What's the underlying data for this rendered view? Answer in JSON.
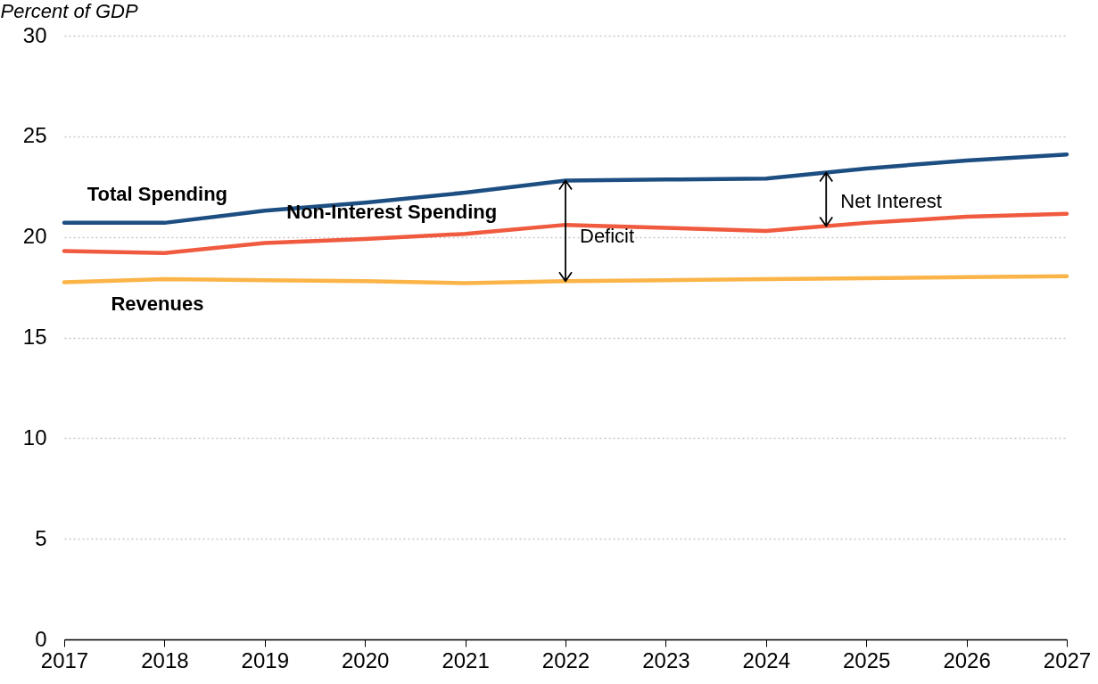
{
  "chart_data": {
    "type": "line",
    "ylabel": "Percent of GDP",
    "x": [
      2017,
      2018,
      2019,
      2020,
      2021,
      2022,
      2023,
      2024,
      2025,
      2026,
      2027
    ],
    "series": [
      {
        "name": "Total Spending",
        "color": "#1d4e82",
        "values": [
          20.7,
          20.7,
          21.3,
          21.7,
          22.2,
          22.8,
          22.85,
          22.9,
          23.4,
          23.8,
          24.1
        ]
      },
      {
        "name": "Non-Interest Spending",
        "color": "#f05a3f",
        "values": [
          19.3,
          19.2,
          19.7,
          19.9,
          20.15,
          20.6,
          20.45,
          20.3,
          20.7,
          21.0,
          21.15
        ]
      },
      {
        "name": "Revenues",
        "color": "#fbb447",
        "values": [
          17.75,
          17.9,
          17.85,
          17.8,
          17.7,
          17.8,
          17.85,
          17.9,
          17.95,
          18.0,
          18.05
        ]
      }
    ],
    "xlim": [
      2017,
      2027
    ],
    "xticks": [
      2017,
      2018,
      2019,
      2020,
      2021,
      2022,
      2023,
      2024,
      2025,
      2026,
      2027
    ],
    "ylim": [
      0,
      30
    ],
    "yticks": [
      0,
      5,
      10,
      15,
      20,
      25,
      30
    ],
    "grid": "y",
    "annotations": [
      {
        "text": "Deficit",
        "x": 2022,
        "y": 17.8
      },
      {
        "text": "Net Interest",
        "x": 2024.6,
        "y": 20.54
      }
    ]
  }
}
